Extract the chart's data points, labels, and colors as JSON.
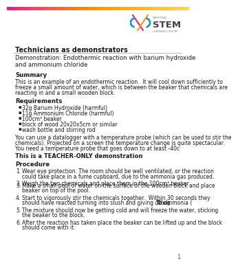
{
  "header_bold": "Technicians as demonstrators",
  "subtitle_line1": "Demonstration: Endothermic reaction with barium hydroxide",
  "subtitle_line2": "and ammonium chloride",
  "section_summary_title": "Summary",
  "summary_lines": [
    "This is an example of an endothermic reaction.  It will cool down sufficiently to",
    "freeze a small amount of water, which is between the beaker that chemicals are",
    "reacting in and a small wooden block."
  ],
  "section_req_title": "Requirements",
  "requirements": [
    "32g Barium Hydroxide (harmful)",
    "11g Ammonium Chloride (harmful)",
    "100cm³ beaker",
    "block of wood 20x20x5cm or similar",
    "wash bottle and stirring rod"
  ],
  "req_note_lines": [
    "You can use a datalogger with a temperature probe (which can be used to stir the",
    "chemicals). Projected on a screen the temperature change is quite spectacular.",
    "You need a temperature probe that goes down to at least -40c"
  ],
  "teacher_only": "This is a TEACHER-ONLY demonstration",
  "section_proc_title": "Procedure",
  "procedure": [
    [
      "Wear eye protection. The room should be well ventilated, or the reaction",
      "could take place in a fume cupboard, due to the ammonia gas produced."
    ],
    [
      "Weigh the two chemicals and place them in the 100cm³ beaker."
    ],
    [
      "Make a small pool of water on the surface of the wooden block and place",
      "beaker on top of the pool."
    ],
    [
      "Start to vigorously stir the chemicals together.  Within 30 seconds they",
      "should have reacted turning into slush and giving off ammonia (Toxic)."
    ],
    [
      "The mixture should now be getting cold and will freeze the water, sticking",
      "the beaker to the block."
    ],
    [
      "After the reaction has taken place the beaker can be lifted up and the block",
      "should come with it."
    ]
  ],
  "page_number": "1",
  "bg_color": "#ffffff",
  "text_color": "#1a1a1a",
  "gray_color": "#555555"
}
